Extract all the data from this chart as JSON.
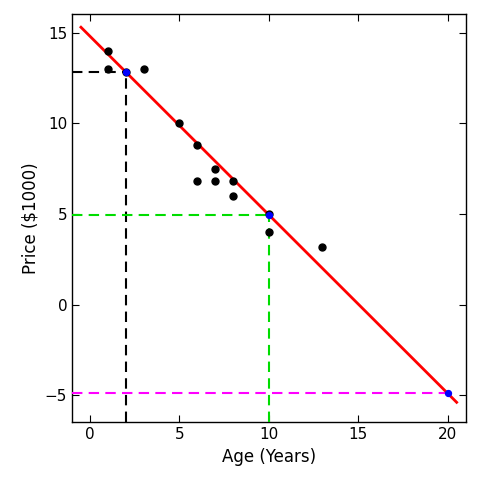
{
  "scatter_x": [
    1,
    1,
    2,
    3,
    5,
    6,
    6,
    7,
    7,
    8,
    8,
    10,
    10,
    13
  ],
  "scatter_y": [
    14,
    13,
    12.8,
    13,
    10,
    8.8,
    6.8,
    7.5,
    6.8,
    6.0,
    6.8,
    5.0,
    4.0,
    3.2
  ],
  "reg_x0": -0.5,
  "reg_x1": 20.5,
  "reg_intercept": 14.8,
  "reg_slope": -0.985,
  "blue_points": [
    [
      2,
      12.83
    ],
    [
      10,
      4.95
    ],
    [
      20,
      -4.87
    ]
  ],
  "black_dashed_vx": 2,
  "black_dashed_hy": 12.83,
  "green_dashed_vx": 10,
  "green_dashed_hy": 4.95,
  "magenta_dashed_y": -4.87,
  "xlim": [
    -1,
    21
  ],
  "ylim": [
    -6.5,
    16
  ],
  "xticks": [
    0,
    5,
    10,
    15,
    20
  ],
  "yticks": [
    -5,
    0,
    5,
    10,
    15
  ],
  "xlabel": "Age (Years)",
  "ylabel": "Price ($1000)",
  "scatter_color": "black",
  "reg_color": "red",
  "blue_color": "blue",
  "black_dash_color": "black",
  "green_dash_color": "#00DD00",
  "magenta_dash_color": "magenta",
  "dot_size": 25,
  "blue_dot_size": 18
}
